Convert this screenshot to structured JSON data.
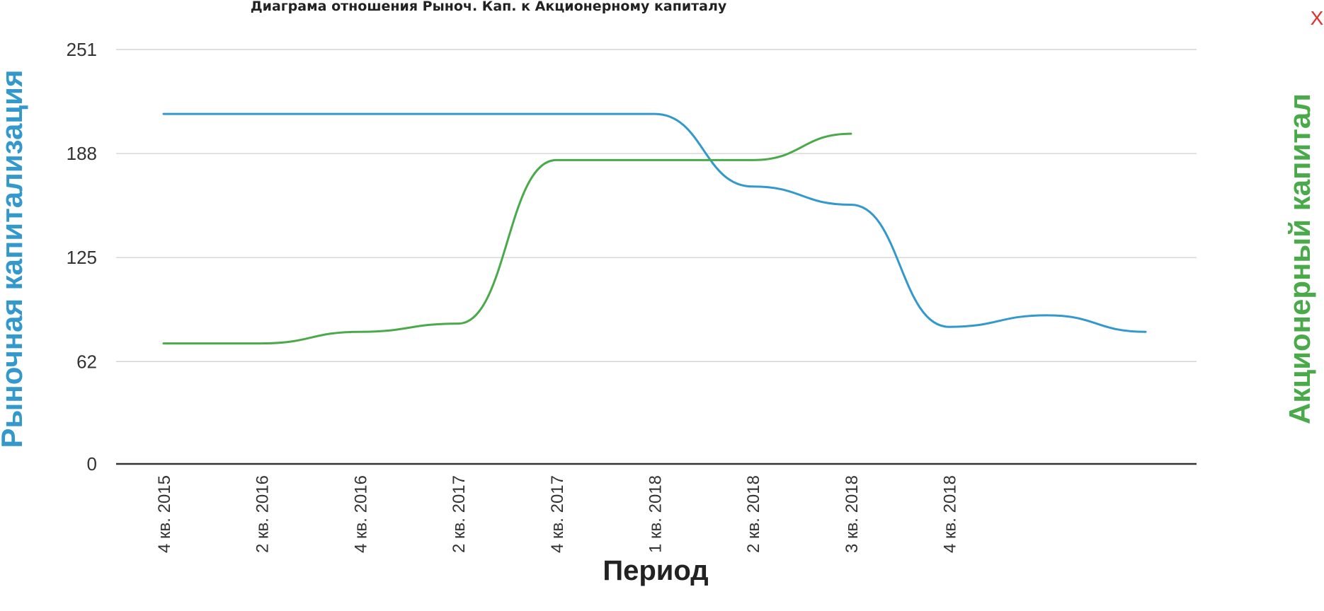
{
  "close_label": "X",
  "chart_data": {
    "type": "line",
    "title": "Диаграма отношения Рыноч. Кап. к Акционерному капиталу",
    "xlabel": "Период",
    "ylabel_left": "Рыночная капитализация",
    "ylabel_right": "Акционерный капитал",
    "ylim": [
      0,
      251
    ],
    "yticks": [
      "0",
      "62",
      "125",
      "188",
      "251"
    ],
    "ytick_values": [
      0,
      62,
      125,
      188,
      251
    ],
    "grid": true,
    "categories": [
      "4 кв. 2015",
      "2 кв. 2016",
      "4 кв. 2016",
      "2 кв. 2017",
      "4 кв. 2017",
      "1 кв. 2018",
      "2 кв. 2018",
      "3 кв. 2018",
      "4 кв. 2018",
      "",
      ""
    ],
    "series": [
      {
        "name": "Рыночная капитализация",
        "color": "#3399cc",
        "values": [
          212,
          212,
          212,
          212,
          212,
          212,
          168,
          157,
          83,
          90,
          80
        ]
      },
      {
        "name": "Акционерный капитал",
        "color": "#4aaa4a",
        "values": [
          73,
          73,
          80,
          85,
          184,
          184,
          184,
          200,
          null,
          null,
          null
        ]
      }
    ]
  }
}
